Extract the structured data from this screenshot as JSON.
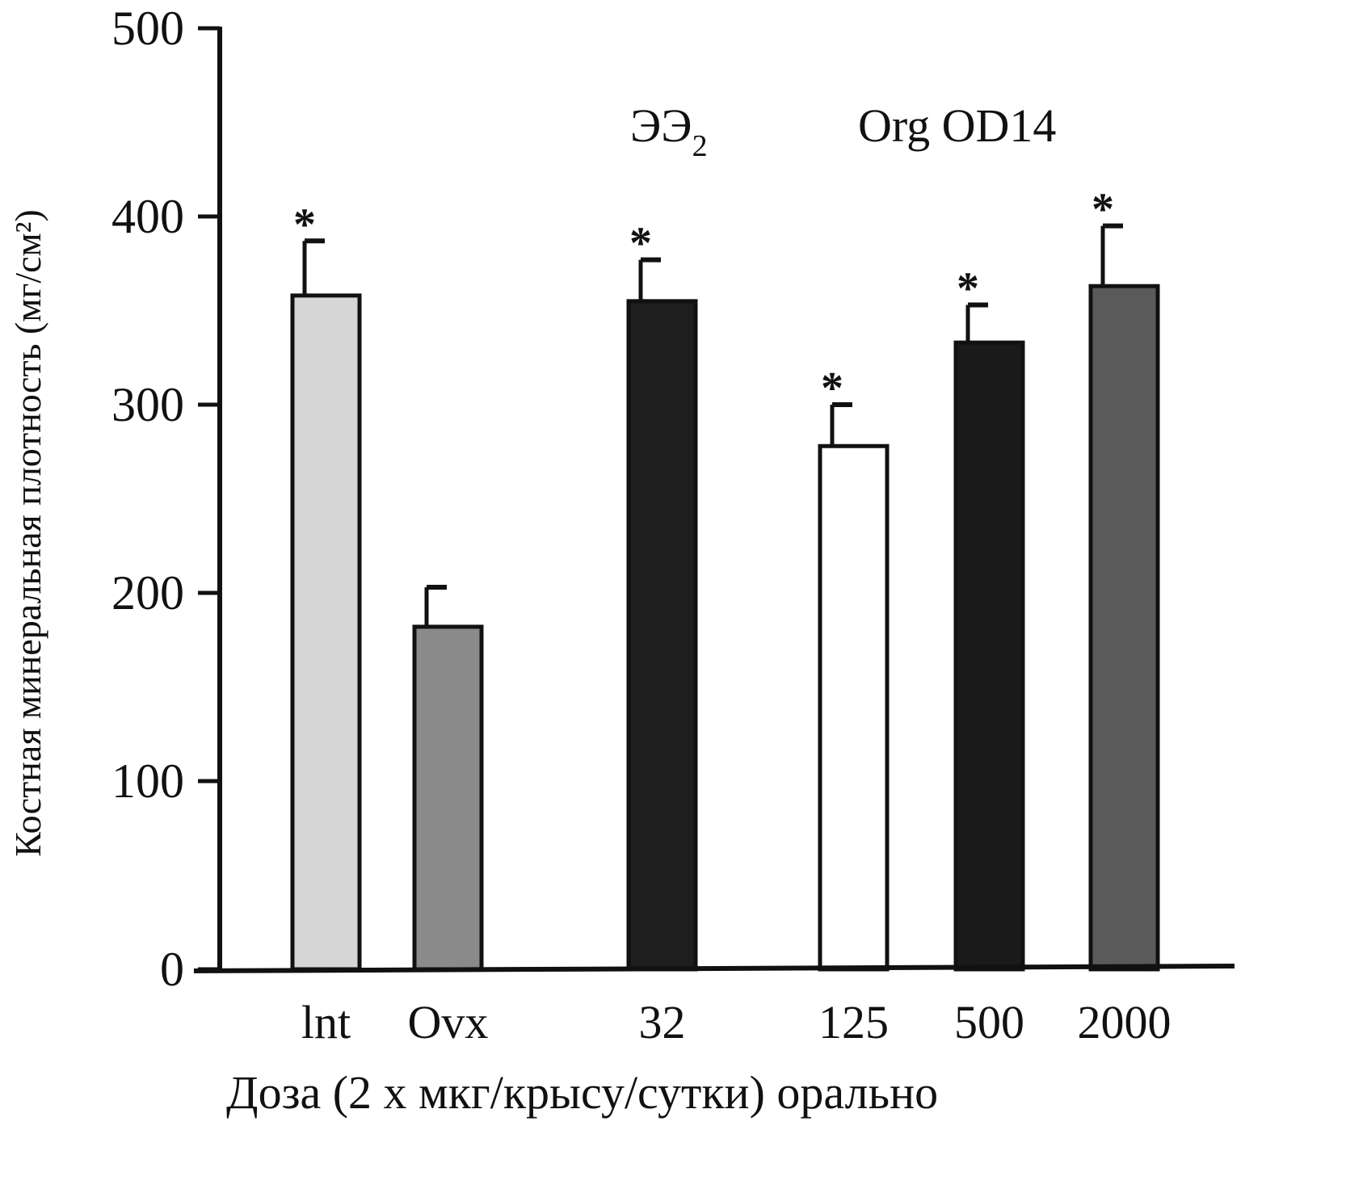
{
  "chart_data": {
    "type": "bar",
    "title": "",
    "ylabel": "Костная минеральная плотность (мг/см²)",
    "xlabel": "Доза (2 х мкг/крысу/сутки) орально",
    "ylim": [
      0,
      500
    ],
    "yticks": [
      "0",
      "100",
      "200",
      "300",
      "400",
      "500"
    ],
    "grid": false,
    "categories": [
      "lnt",
      "Ovx",
      "32",
      "125",
      "500",
      "2000"
    ],
    "values": [
      358,
      182,
      355,
      278,
      333,
      363
    ],
    "error_upper": [
      387,
      203,
      377,
      300,
      353,
      395
    ],
    "significant": [
      true,
      false,
      true,
      true,
      true,
      true
    ],
    "significance_marker": "*",
    "group_labels": {
      "ee2": "ЭЭ",
      "ee2_sub": "2",
      "org": "Org OD14"
    },
    "colors": [
      "#d6d6d6",
      "#8a8a8a",
      "#1e1e1e",
      "#ffffff",
      "#1a1a1a",
      "#5a5a5a"
    ]
  }
}
